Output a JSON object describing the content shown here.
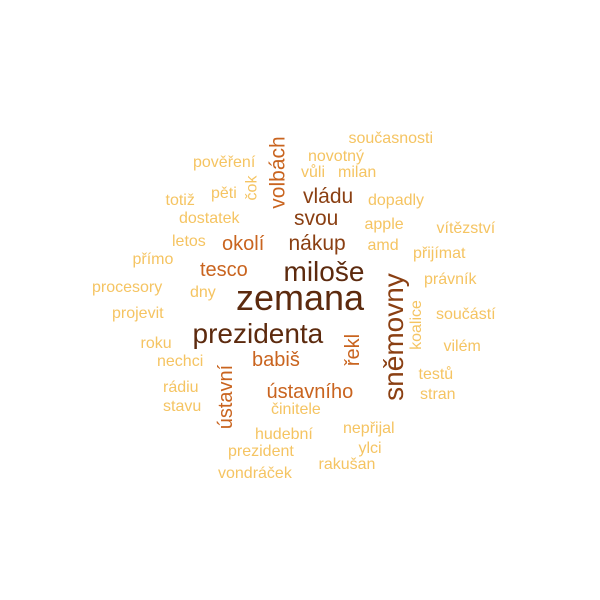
{
  "colors": {
    "dark": "#5c2a0e",
    "brown": "#8a3f12",
    "orange": "#c9641f",
    "amber": "#e2962f",
    "light": "#f5c462"
  },
  "words": [
    {
      "text": "zemana",
      "tone": "dark"
    },
    {
      "text": "miloše",
      "tone": "dark"
    },
    {
      "text": "prezidenta",
      "tone": "dark"
    },
    {
      "text": "sněmovny",
      "tone": "brown"
    },
    {
      "text": "nákup",
      "tone": "brown"
    },
    {
      "text": "vládu",
      "tone": "brown"
    },
    {
      "text": "svou",
      "tone": "brown"
    },
    {
      "text": "volbách",
      "tone": "orange"
    },
    {
      "text": "okolí",
      "tone": "orange"
    },
    {
      "text": "tesco",
      "tone": "orange"
    },
    {
      "text": "babiš",
      "tone": "orange"
    },
    {
      "text": "řekl",
      "tone": "orange"
    },
    {
      "text": "ústavního",
      "tone": "orange"
    },
    {
      "text": "ústavní",
      "tone": "orange"
    },
    {
      "text": "současnosti",
      "tone": "light"
    },
    {
      "text": "novotný",
      "tone": "light"
    },
    {
      "text": "pověření",
      "tone": "light"
    },
    {
      "text": "vůli",
      "tone": "light"
    },
    {
      "text": "milan",
      "tone": "light"
    },
    {
      "text": "pěti",
      "tone": "light"
    },
    {
      "text": "čok",
      "tone": "light"
    },
    {
      "text": "totiž",
      "tone": "light"
    },
    {
      "text": "dopadly",
      "tone": "light"
    },
    {
      "text": "dostatek",
      "tone": "light"
    },
    {
      "text": "apple",
      "tone": "light"
    },
    {
      "text": "vítězství",
      "tone": "light"
    },
    {
      "text": "letos",
      "tone": "light"
    },
    {
      "text": "amd",
      "tone": "light"
    },
    {
      "text": "přijímat",
      "tone": "light"
    },
    {
      "text": "přímo",
      "tone": "light"
    },
    {
      "text": "procesory",
      "tone": "light"
    },
    {
      "text": "dny",
      "tone": "light"
    },
    {
      "text": "právník",
      "tone": "light"
    },
    {
      "text": "projevit",
      "tone": "light"
    },
    {
      "text": "koalice",
      "tone": "light"
    },
    {
      "text": "součástí",
      "tone": "light"
    },
    {
      "text": "roku",
      "tone": "light"
    },
    {
      "text": "vilém",
      "tone": "light"
    },
    {
      "text": "nechci",
      "tone": "light"
    },
    {
      "text": "testů",
      "tone": "light"
    },
    {
      "text": "rádiu",
      "tone": "light"
    },
    {
      "text": "stran",
      "tone": "light"
    },
    {
      "text": "stavu",
      "tone": "light"
    },
    {
      "text": "činitele",
      "tone": "light"
    },
    {
      "text": "hudební",
      "tone": "light"
    },
    {
      "text": "nepřijal",
      "tone": "light"
    },
    {
      "text": "prezident",
      "tone": "light"
    },
    {
      "text": "ylci",
      "tone": "light"
    },
    {
      "text": "rakušan",
      "tone": "light"
    },
    {
      "text": "vondráček",
      "tone": "light"
    }
  ]
}
